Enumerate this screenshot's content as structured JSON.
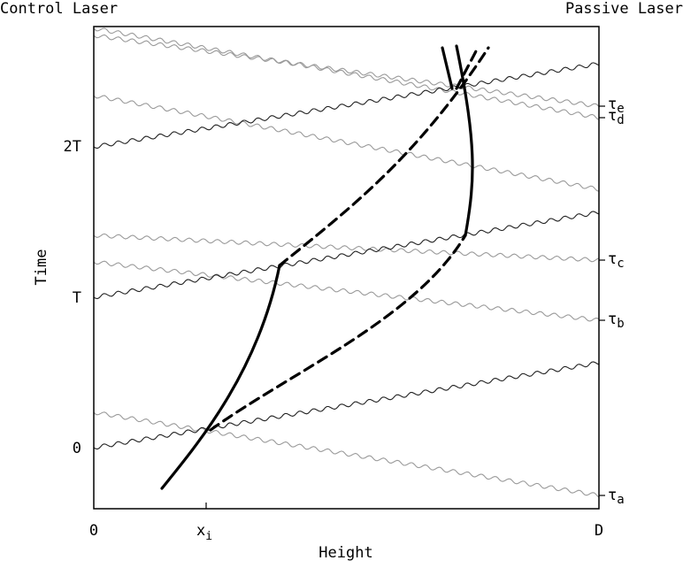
{
  "header": {
    "left_label": "Control Laser",
    "right_label": "Passive Laser"
  },
  "axes": {
    "x_title": "Height",
    "y_title": "Time",
    "x_tick_0": "0",
    "x_tick_xi_base": "x",
    "x_tick_xi_sub": "i",
    "x_tick_d": "D",
    "y_tick_0": "0",
    "y_tick_t": "T",
    "y_tick_2t": "2T"
  },
  "tau_labels": [
    {
      "base": "τ",
      "sub": "a"
    },
    {
      "base": "τ",
      "sub": "b"
    },
    {
      "base": "τ",
      "sub": "c"
    },
    {
      "base": "τ",
      "sub": "d"
    },
    {
      "base": "τ",
      "sub": "e"
    }
  ],
  "colors": {
    "frame": "#000000",
    "control_wave": "#222222",
    "passive_wave": "#9a9a9a",
    "trajectory": "#000000"
  }
}
